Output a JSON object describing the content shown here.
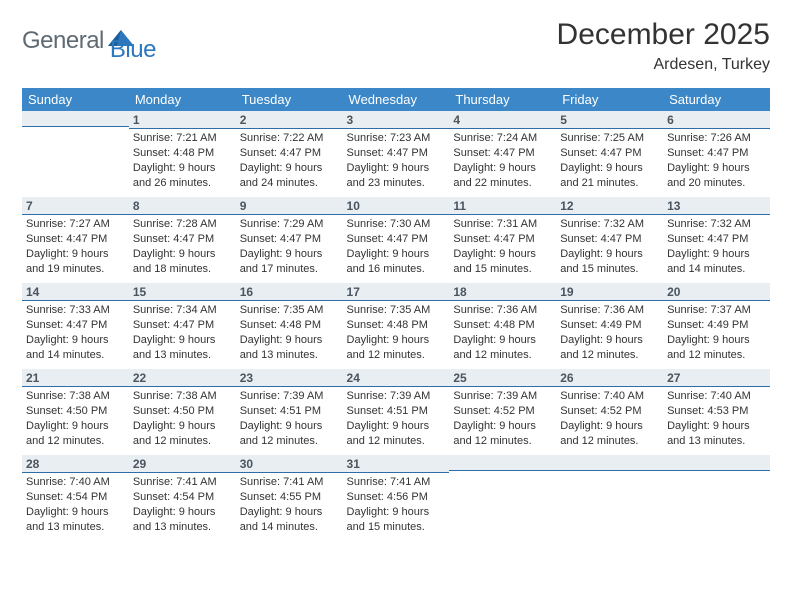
{
  "logo": {
    "general": "General",
    "blue": "Blue"
  },
  "title": "December 2025",
  "location": "Ardesen, Turkey",
  "colors": {
    "header_bg": "#3b87c8",
    "header_text": "#ffffff",
    "daynum_bg": "#e9eef2",
    "daynum_border": "#2d6ea8",
    "text": "#333333",
    "logo_gray": "#5f6a72",
    "logo_blue": "#2d77bd"
  },
  "weekday_headers": [
    "Sunday",
    "Monday",
    "Tuesday",
    "Wednesday",
    "Thursday",
    "Friday",
    "Saturday"
  ],
  "weeks": [
    [
      {
        "blank": true
      },
      {
        "day": "1",
        "sunrise": "Sunrise: 7:21 AM",
        "sunset": "Sunset: 4:48 PM",
        "daylight": "Daylight: 9 hours and 26 minutes."
      },
      {
        "day": "2",
        "sunrise": "Sunrise: 7:22 AM",
        "sunset": "Sunset: 4:47 PM",
        "daylight": "Daylight: 9 hours and 24 minutes."
      },
      {
        "day": "3",
        "sunrise": "Sunrise: 7:23 AM",
        "sunset": "Sunset: 4:47 PM",
        "daylight": "Daylight: 9 hours and 23 minutes."
      },
      {
        "day": "4",
        "sunrise": "Sunrise: 7:24 AM",
        "sunset": "Sunset: 4:47 PM",
        "daylight": "Daylight: 9 hours and 22 minutes."
      },
      {
        "day": "5",
        "sunrise": "Sunrise: 7:25 AM",
        "sunset": "Sunset: 4:47 PM",
        "daylight": "Daylight: 9 hours and 21 minutes."
      },
      {
        "day": "6",
        "sunrise": "Sunrise: 7:26 AM",
        "sunset": "Sunset: 4:47 PM",
        "daylight": "Daylight: 9 hours and 20 minutes."
      }
    ],
    [
      {
        "day": "7",
        "sunrise": "Sunrise: 7:27 AM",
        "sunset": "Sunset: 4:47 PM",
        "daylight": "Daylight: 9 hours and 19 minutes."
      },
      {
        "day": "8",
        "sunrise": "Sunrise: 7:28 AM",
        "sunset": "Sunset: 4:47 PM",
        "daylight": "Daylight: 9 hours and 18 minutes."
      },
      {
        "day": "9",
        "sunrise": "Sunrise: 7:29 AM",
        "sunset": "Sunset: 4:47 PM",
        "daylight": "Daylight: 9 hours and 17 minutes."
      },
      {
        "day": "10",
        "sunrise": "Sunrise: 7:30 AM",
        "sunset": "Sunset: 4:47 PM",
        "daylight": "Daylight: 9 hours and 16 minutes."
      },
      {
        "day": "11",
        "sunrise": "Sunrise: 7:31 AM",
        "sunset": "Sunset: 4:47 PM",
        "daylight": "Daylight: 9 hours and 15 minutes."
      },
      {
        "day": "12",
        "sunrise": "Sunrise: 7:32 AM",
        "sunset": "Sunset: 4:47 PM",
        "daylight": "Daylight: 9 hours and 15 minutes."
      },
      {
        "day": "13",
        "sunrise": "Sunrise: 7:32 AM",
        "sunset": "Sunset: 4:47 PM",
        "daylight": "Daylight: 9 hours and 14 minutes."
      }
    ],
    [
      {
        "day": "14",
        "sunrise": "Sunrise: 7:33 AM",
        "sunset": "Sunset: 4:47 PM",
        "daylight": "Daylight: 9 hours and 14 minutes."
      },
      {
        "day": "15",
        "sunrise": "Sunrise: 7:34 AM",
        "sunset": "Sunset: 4:47 PM",
        "daylight": "Daylight: 9 hours and 13 minutes."
      },
      {
        "day": "16",
        "sunrise": "Sunrise: 7:35 AM",
        "sunset": "Sunset: 4:48 PM",
        "daylight": "Daylight: 9 hours and 13 minutes."
      },
      {
        "day": "17",
        "sunrise": "Sunrise: 7:35 AM",
        "sunset": "Sunset: 4:48 PM",
        "daylight": "Daylight: 9 hours and 12 minutes."
      },
      {
        "day": "18",
        "sunrise": "Sunrise: 7:36 AM",
        "sunset": "Sunset: 4:48 PM",
        "daylight": "Daylight: 9 hours and 12 minutes."
      },
      {
        "day": "19",
        "sunrise": "Sunrise: 7:36 AM",
        "sunset": "Sunset: 4:49 PM",
        "daylight": "Daylight: 9 hours and 12 minutes."
      },
      {
        "day": "20",
        "sunrise": "Sunrise: 7:37 AM",
        "sunset": "Sunset: 4:49 PM",
        "daylight": "Daylight: 9 hours and 12 minutes."
      }
    ],
    [
      {
        "day": "21",
        "sunrise": "Sunrise: 7:38 AM",
        "sunset": "Sunset: 4:50 PM",
        "daylight": "Daylight: 9 hours and 12 minutes."
      },
      {
        "day": "22",
        "sunrise": "Sunrise: 7:38 AM",
        "sunset": "Sunset: 4:50 PM",
        "daylight": "Daylight: 9 hours and 12 minutes."
      },
      {
        "day": "23",
        "sunrise": "Sunrise: 7:39 AM",
        "sunset": "Sunset: 4:51 PM",
        "daylight": "Daylight: 9 hours and 12 minutes."
      },
      {
        "day": "24",
        "sunrise": "Sunrise: 7:39 AM",
        "sunset": "Sunset: 4:51 PM",
        "daylight": "Daylight: 9 hours and 12 minutes."
      },
      {
        "day": "25",
        "sunrise": "Sunrise: 7:39 AM",
        "sunset": "Sunset: 4:52 PM",
        "daylight": "Daylight: 9 hours and 12 minutes."
      },
      {
        "day": "26",
        "sunrise": "Sunrise: 7:40 AM",
        "sunset": "Sunset: 4:52 PM",
        "daylight": "Daylight: 9 hours and 12 minutes."
      },
      {
        "day": "27",
        "sunrise": "Sunrise: 7:40 AM",
        "sunset": "Sunset: 4:53 PM",
        "daylight": "Daylight: 9 hours and 13 minutes."
      }
    ],
    [
      {
        "day": "28",
        "sunrise": "Sunrise: 7:40 AM",
        "sunset": "Sunset: 4:54 PM",
        "daylight": "Daylight: 9 hours and 13 minutes."
      },
      {
        "day": "29",
        "sunrise": "Sunrise: 7:41 AM",
        "sunset": "Sunset: 4:54 PM",
        "daylight": "Daylight: 9 hours and 13 minutes."
      },
      {
        "day": "30",
        "sunrise": "Sunrise: 7:41 AM",
        "sunset": "Sunset: 4:55 PM",
        "daylight": "Daylight: 9 hours and 14 minutes."
      },
      {
        "day": "31",
        "sunrise": "Sunrise: 7:41 AM",
        "sunset": "Sunset: 4:56 PM",
        "daylight": "Daylight: 9 hours and 15 minutes."
      },
      {
        "blank": true
      },
      {
        "blank": true
      },
      {
        "blank": true
      }
    ]
  ]
}
